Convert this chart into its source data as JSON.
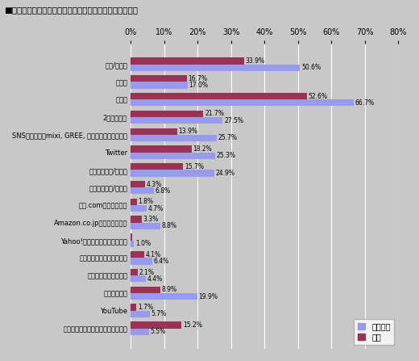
{
  "title": "■ゲームを話題にしたコミュニケーションを行う人，場所",
  "categories": [
    "学校/職場で",
    "家族と",
    "知人と",
    "2ちゃんねる",
    "SNSサービス（mixi, GREE, モバゲータウンなど）",
    "Twitter",
    "自分のブログ/サイト",
    "他人のブログ/サイト",
    "価格.com（の掲示板）",
    "Amazon.co.jp（のコメント）",
    "Yahoo!（の掲示板，コメント）",
    "ファンサイトや攻略サイト",
    "個人のレビューサイト",
    "ニコニコ動画",
    "YouTube",
    "ゲームのことはあまり話題にしない"
  ],
  "title_values": [
    50.6,
    17.0,
    66.7,
    27.5,
    25.7,
    25.3,
    24.9,
    6.8,
    4.7,
    8.8,
    1.0,
    6.4,
    4.4,
    19.9,
    5.7,
    5.5
  ],
  "zentai_values": [
    33.9,
    16.7,
    52.6,
    21.7,
    13.9,
    18.2,
    15.7,
    4.3,
    1.8,
    3.3,
    0.4,
    4.1,
    2.1,
    8.9,
    1.7,
    15.2
  ],
  "title_color": "#9999ee",
  "zentai_color": "#993355",
  "bg_color": "#c8c8c8",
  "plot_bg_color": "#c8c8c8",
  "xlim": [
    0,
    80
  ],
  "xticks": [
    0,
    10,
    20,
    30,
    40,
    50,
    60,
    70,
    80
  ],
  "legend_labels": [
    "タイトル",
    "全体"
  ],
  "bar_height": 0.38,
  "figsize": [
    5.2,
    4.47
  ],
  "dpi": 100
}
